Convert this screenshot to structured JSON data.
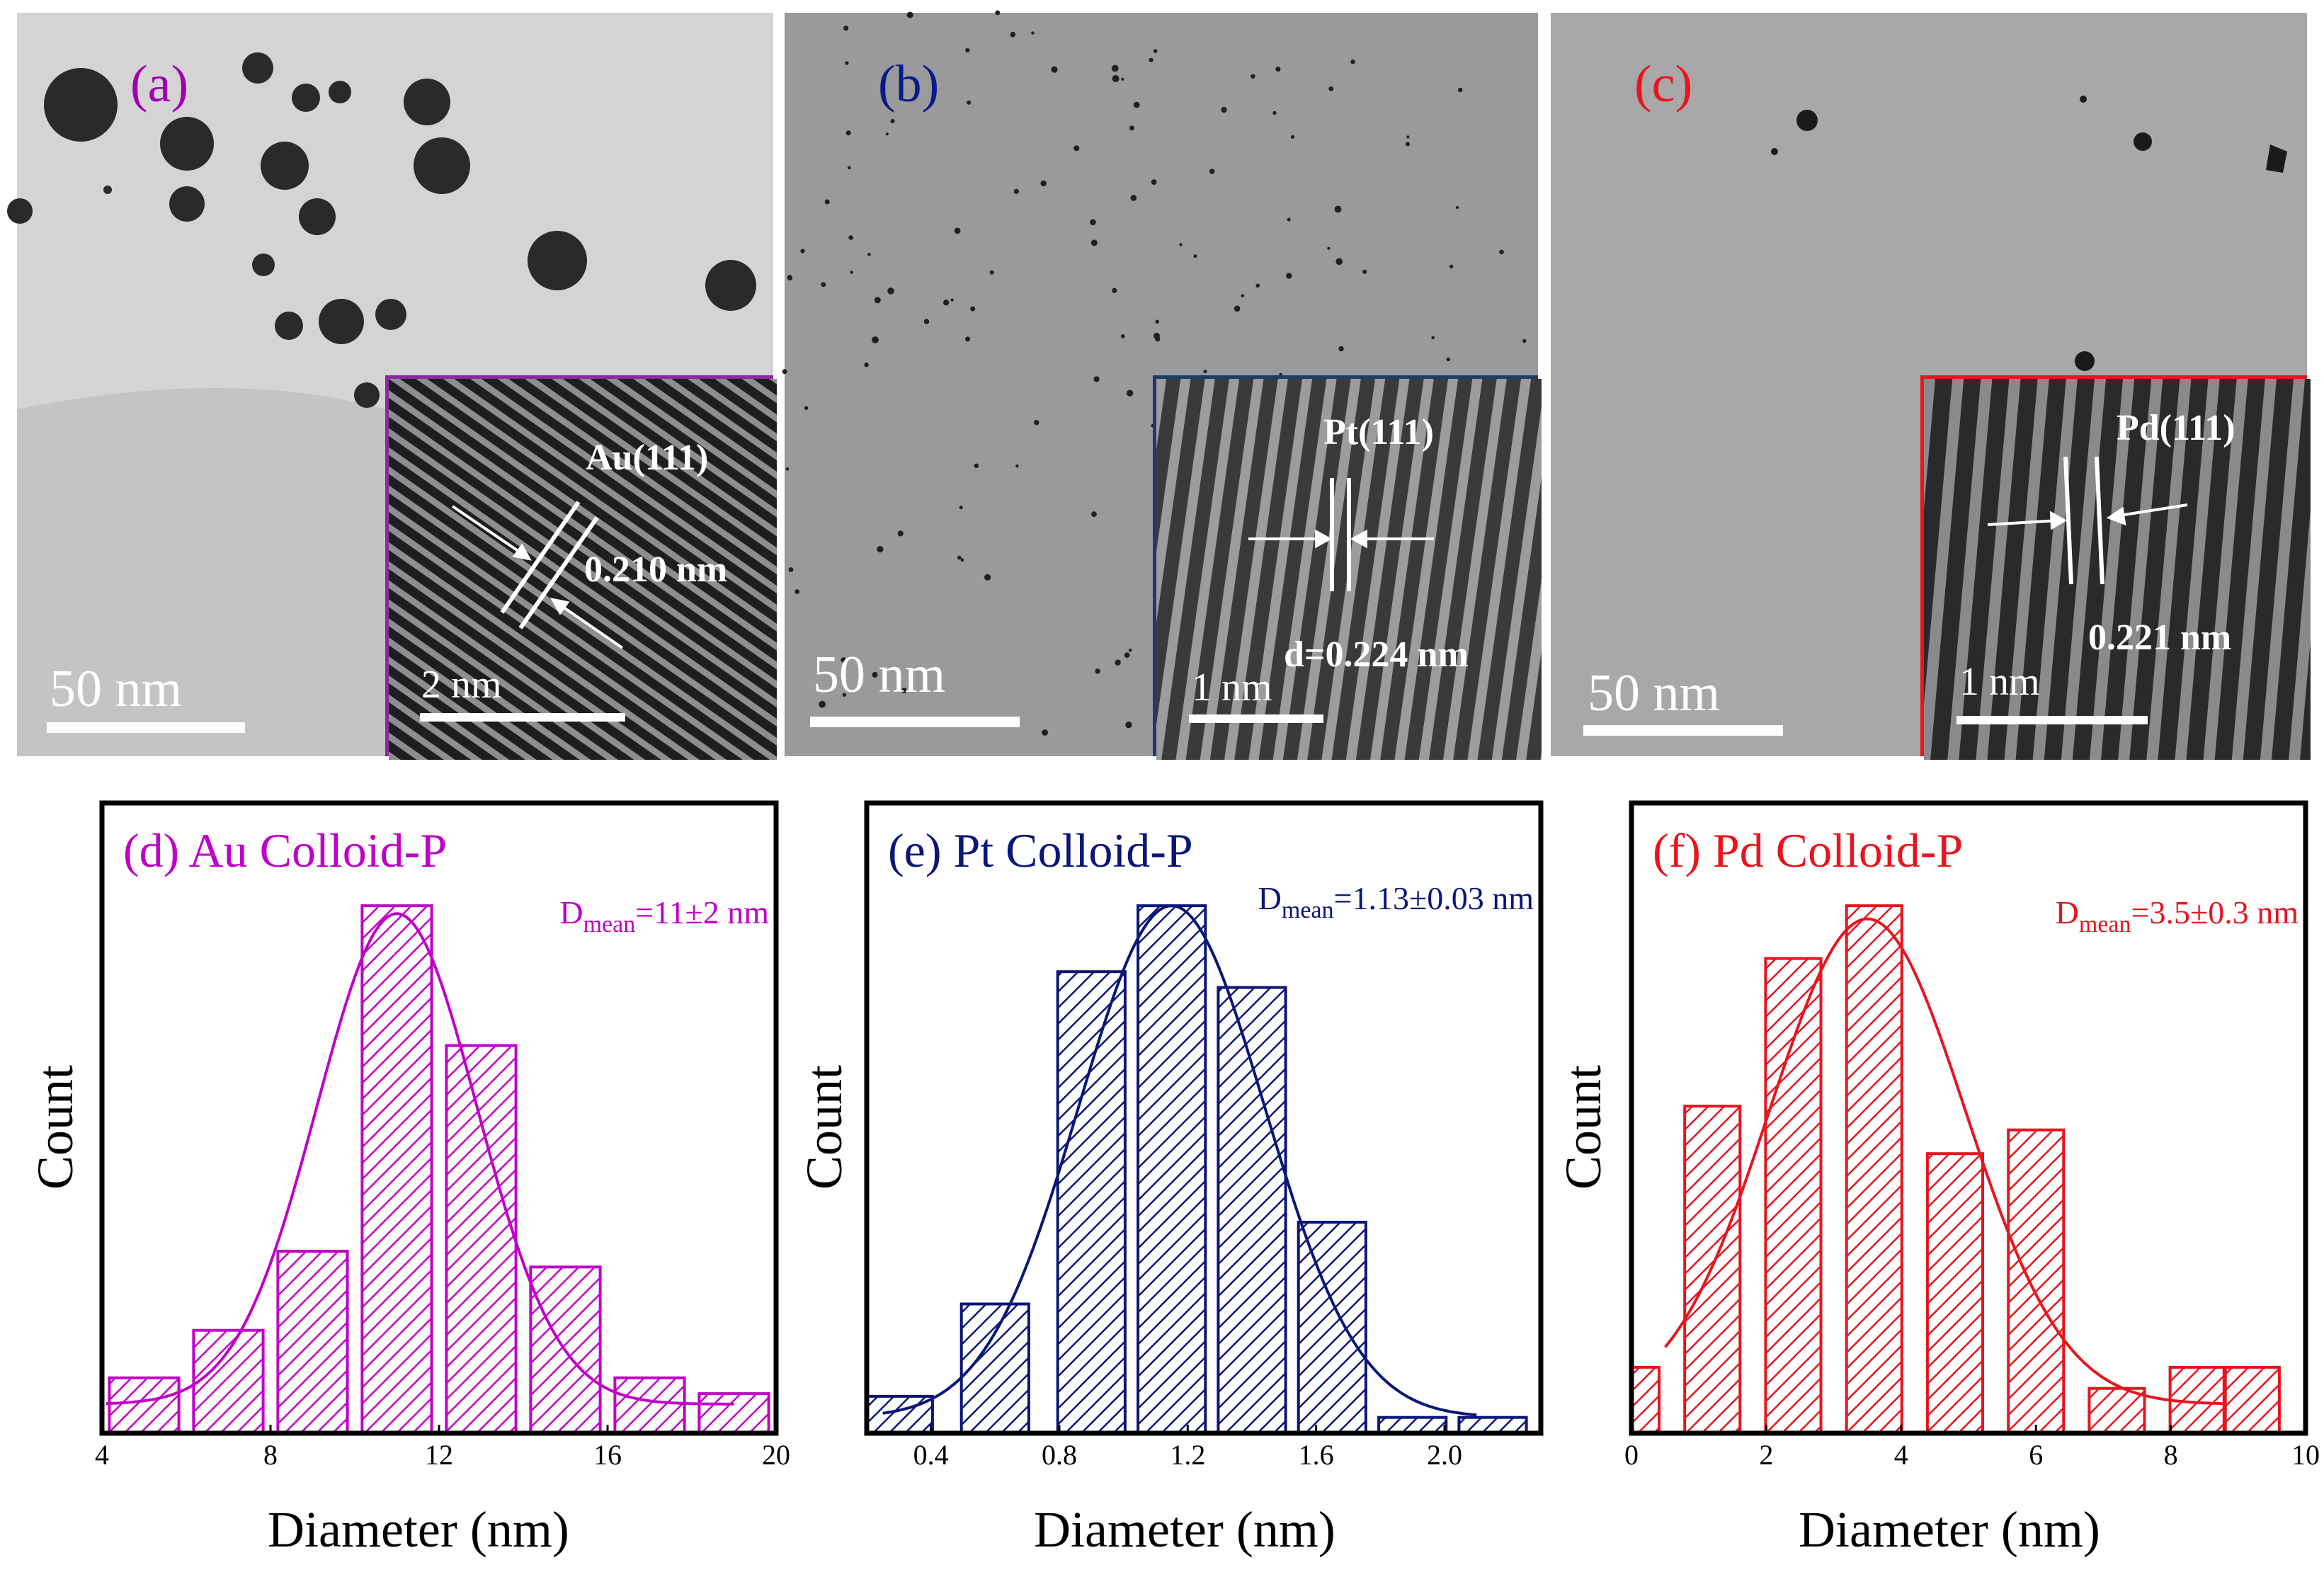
{
  "tem_panels": [
    {
      "label": "(a)",
      "label_color": "#a000b0",
      "scalebar": "50 nm",
      "inset": {
        "plane": "Au(111)",
        "spacing": "0.210 nm",
        "scalebar": "2 nm",
        "border": "#8a2aa0"
      }
    },
    {
      "label": "(b)",
      "label_color": "#0a1a8a",
      "scalebar": "50 nm",
      "inset": {
        "plane": "Pt(111)",
        "spacing": "d=0.224 nm",
        "scalebar": "1 nm",
        "border": "#1f3a6e"
      }
    },
    {
      "label": "(c)",
      "label_color": "#e8141e",
      "scalebar": "50 nm",
      "inset": {
        "plane": "Pd(111)",
        "spacing": "0.221 nm",
        "scalebar": "1 nm",
        "border": "#e8141e"
      }
    }
  ],
  "chart_data": [
    {
      "type": "bar",
      "title": "(d) Au Colloid-P",
      "color": "#c000c8",
      "annotation": {
        "base": "D",
        "sub": "mean",
        "rest": "=11±2 nm"
      },
      "xlabel": "Diameter (nm)",
      "ylabel": "Count",
      "xlim": [
        4,
        20
      ],
      "ylim": [
        0,
        1
      ],
      "xticks": [
        4,
        8,
        12,
        16,
        20
      ],
      "bins": [
        {
          "x": 5,
          "h": 0.105
        },
        {
          "x": 7,
          "h": 0.195
        },
        {
          "x": 9,
          "h": 0.345
        },
        {
          "x": 11,
          "h": 1.0
        },
        {
          "x": 13,
          "h": 0.735
        },
        {
          "x": 15,
          "h": 0.315
        },
        {
          "x": 17,
          "h": 0.105
        },
        {
          "x": 19,
          "h": 0.075
        }
      ],
      "bin_width": 1.65,
      "fit": {
        "mu": 11,
        "sigma": 1.9,
        "amp": 0.93,
        "base": 0.055,
        "xmin": 4.1,
        "xmax": 19.0
      }
    },
    {
      "type": "bar",
      "title": "(e) Pt Colloid-P",
      "color": "#0a1678",
      "annotation": {
        "base": "D",
        "sub": "mean",
        "rest": "=1.13±0.03 nm"
      },
      "xlabel": "Diameter (nm)",
      "ylabel": "Count",
      "xlim": [
        0.2,
        2.3
      ],
      "ylim": [
        0,
        1
      ],
      "xticks": [
        0.4,
        0.8,
        1.2,
        1.6,
        2.0
      ],
      "xtick_labels": [
        "0.4",
        "0.8",
        "1.2",
        "1.6",
        "2.0"
      ],
      "bins": [
        {
          "x": 0.3,
          "h": 0.07
        },
        {
          "x": 0.6,
          "h": 0.245
        },
        {
          "x": 0.9,
          "h": 0.875
        },
        {
          "x": 1.15,
          "h": 1.0
        },
        {
          "x": 1.4,
          "h": 0.845
        },
        {
          "x": 1.65,
          "h": 0.4
        },
        {
          "x": 1.9,
          "h": 0.03
        },
        {
          "x": 2.15,
          "h": 0.03
        }
      ],
      "bin_width": 0.21,
      "fit": {
        "mu": 1.15,
        "sigma": 0.29,
        "amp": 0.97,
        "base": 0.03,
        "xmin": 0.25,
        "xmax": 2.1
      }
    },
    {
      "type": "bar",
      "title": "(f) Pd Colloid-P",
      "color": "#e8141e",
      "annotation": {
        "base": "D",
        "sub": "mean",
        "rest": "=3.5±0.3 nm"
      },
      "xlabel": "Diameter (nm)",
      "ylabel": "Count",
      "xlim": [
        0,
        10
      ],
      "ylim": [
        0,
        1
      ],
      "xticks": [
        0,
        2,
        4,
        6,
        8,
        10
      ],
      "bins": [
        {
          "x": 0,
          "h": 0.125
        },
        {
          "x": 1.2,
          "h": 0.62
        },
        {
          "x": 2.4,
          "h": 0.9
        },
        {
          "x": 3.6,
          "h": 1.0
        },
        {
          "x": 4.8,
          "h": 0.53
        },
        {
          "x": 6,
          "h": 0.575
        },
        {
          "x": 7.2,
          "h": 0.085
        },
        {
          "x": 8.4,
          "h": 0.125
        },
        {
          "x": 9.2,
          "h": 0.125
        }
      ],
      "bin_width": 0.82,
      "fit": {
        "mu": 3.5,
        "sigma": 1.45,
        "amp": 0.92,
        "base": 0.055,
        "xmin": 0.5,
        "xmax": 8.8
      }
    }
  ]
}
